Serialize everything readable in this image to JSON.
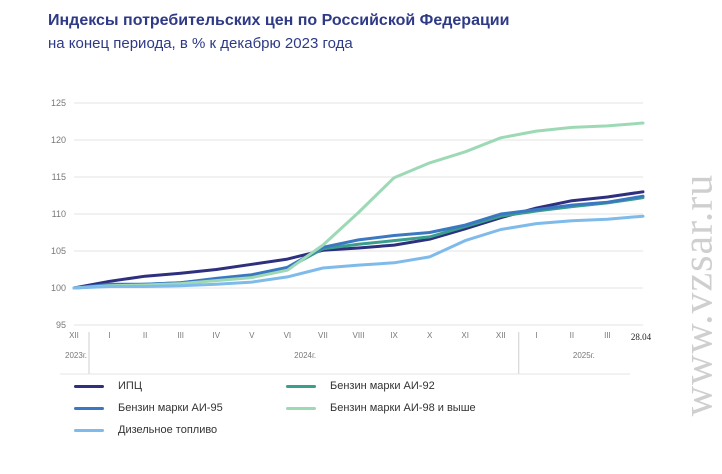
{
  "header": {
    "title": "Индексы потребительских цен по Российской Федерации",
    "subtitle": "на конец периода, в % к декабрю 2023 года"
  },
  "watermark": {
    "text": "www.vzsar.ru"
  },
  "chart_data": {
    "type": "line",
    "title": "Индексы потребительских цен по Российской Федерации",
    "subtitle": "на конец периода, в % к декабрю 2023 года",
    "categories": [
      "XII",
      "I",
      "II",
      "III",
      "IV",
      "V",
      "VI",
      "VII",
      "VIII",
      "IX",
      "X",
      "XI",
      "XII",
      "I",
      "II",
      "III",
      "28.04"
    ],
    "year_labels": [
      "2023г.",
      "2024г.",
      "2025г."
    ],
    "ylim": [
      95,
      125
    ],
    "yticks": [
      95,
      100,
      105,
      110,
      115,
      120,
      125
    ],
    "grid": true,
    "legend_position": "bottom",
    "series": [
      {
        "name": "ИПЦ",
        "color": "#2e2f7f",
        "values": [
          100,
          100.9,
          101.6,
          102.0,
          102.5,
          103.2,
          103.9,
          105.1,
          105.4,
          105.8,
          106.6,
          108.0,
          109.5,
          110.8,
          111.8,
          112.3,
          113.0
        ]
      },
      {
        "name": "Бензин марки АИ-92",
        "color": "#3a9e8c",
        "values": [
          100,
          100.3,
          100.5,
          100.7,
          101.2,
          101.6,
          102.7,
          105.3,
          105.9,
          106.4,
          106.9,
          108.3,
          109.7,
          110.4,
          111.0,
          111.5,
          112.2
        ]
      },
      {
        "name": "Бензин марки АИ-95",
        "color": "#3b78c2",
        "values": [
          100,
          100.5,
          100.5,
          100.7,
          101.3,
          101.8,
          102.8,
          105.5,
          106.5,
          107.1,
          107.5,
          108.5,
          110.0,
          110.6,
          111.2,
          111.6,
          112.4
        ]
      },
      {
        "name": "Бензин марки АИ-98 и выше",
        "color": "#9ed9b6",
        "values": [
          100,
          100.3,
          100.4,
          100.6,
          101.0,
          101.4,
          102.4,
          105.8,
          110.2,
          114.9,
          116.9,
          118.4,
          120.3,
          121.2,
          121.7,
          121.9,
          122.3
        ]
      },
      {
        "name": "Дизельное топливо",
        "color": "#7fbbea",
        "values": [
          100,
          100.2,
          100.2,
          100.3,
          100.5,
          100.8,
          101.5,
          102.7,
          103.1,
          103.4,
          104.2,
          106.4,
          107.9,
          108.7,
          109.1,
          109.3,
          109.7
        ]
      }
    ]
  }
}
